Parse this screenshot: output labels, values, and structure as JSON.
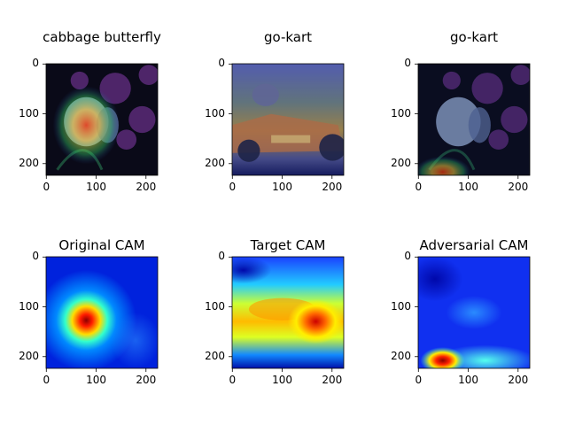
{
  "panels": [
    {
      "title": "cabbage butterfly",
      "kind": "overlay-butterfly"
    },
    {
      "title": "go-kart",
      "kind": "overlay-kart"
    },
    {
      "title": "go-kart",
      "kind": "overlay-adv"
    },
    {
      "title": "Original CAM",
      "kind": "cam-original"
    },
    {
      "title": "Target CAM",
      "kind": "cam-target"
    },
    {
      "title": "Adversarial CAM",
      "kind": "cam-adversarial"
    }
  ],
  "axes": {
    "y_ticks": [
      "0",
      "100",
      "200"
    ],
    "x_ticks": [
      "0",
      "100",
      "200"
    ]
  },
  "colors": {
    "cam_low": "#00008f",
    "cam_mid": "#2050ff",
    "cam_hot": "#ff2000",
    "cam_peak": "#8b0000"
  }
}
